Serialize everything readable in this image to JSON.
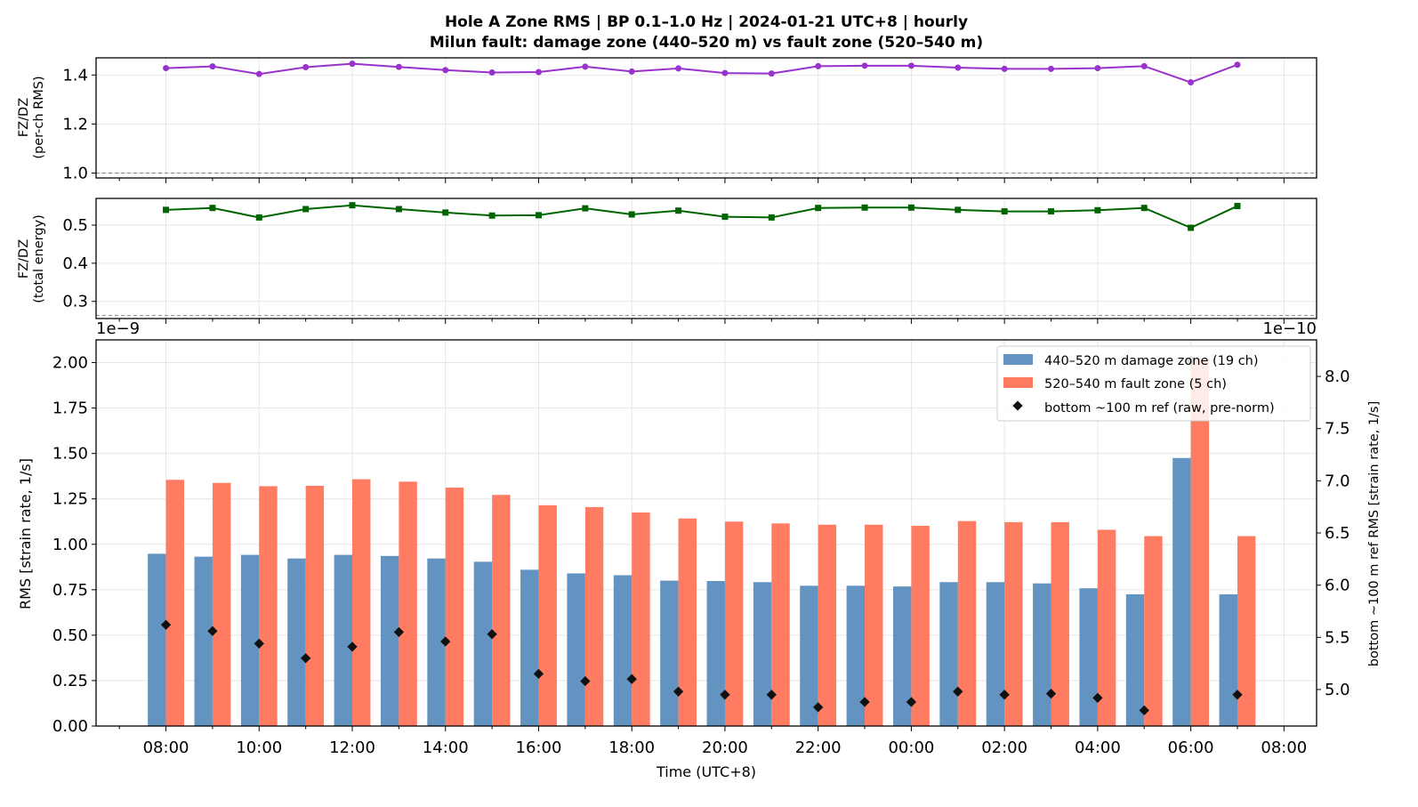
{
  "figure": {
    "title_line1": "Hole A Zone RMS  |  BP 0.1–1.0 Hz  |  2024-01-21 UTC+8  |  hourly",
    "title_line2": "Milun fault: damage zone (440–520 m) vs fault zone (520–540 m)"
  },
  "colors": {
    "ratio_rms": "#9932CC",
    "ratio_energy": "#006400",
    "damage_zone": "#6393C1",
    "fault_zone": "#FF7B61",
    "bottom_ref": "#111111",
    "grid": "#e6e6e6",
    "reference_line": "#888888"
  },
  "chart_data": [
    {
      "type": "line",
      "panel": "top",
      "ylabel_line1": "FZ/DZ",
      "ylabel_line2": "(per-ch RMS)",
      "ylim": [
        0.98,
        1.47
      ],
      "yticks": [
        1.0,
        1.2,
        1.4
      ],
      "reference_y": 1.0,
      "grid": true,
      "marker": "circle",
      "x": [
        "2024-01-21 08:00",
        "2024-01-21 09:00",
        "2024-01-21 10:00",
        "2024-01-21 11:00",
        "2024-01-21 12:00",
        "2024-01-21 13:00",
        "2024-01-21 14:00",
        "2024-01-21 15:00",
        "2024-01-21 16:00",
        "2024-01-21 17:00",
        "2024-01-21 18:00",
        "2024-01-21 19:00",
        "2024-01-21 20:00",
        "2024-01-21 21:00",
        "2024-01-21 22:00",
        "2024-01-21 23:00",
        "2024-01-22 00:00",
        "2024-01-22 01:00",
        "2024-01-22 02:00",
        "2024-01-22 03:00",
        "2024-01-22 04:00",
        "2024-01-22 05:00",
        "2024-01-22 06:00",
        "2024-01-22 07:00"
      ],
      "values": [
        1.428,
        1.435,
        1.404,
        1.432,
        1.446,
        1.433,
        1.42,
        1.41,
        1.412,
        1.434,
        1.414,
        1.427,
        1.408,
        1.406,
        1.436,
        1.438,
        1.438,
        1.43,
        1.425,
        1.425,
        1.428,
        1.436,
        1.37,
        1.442
      ]
    },
    {
      "type": "line",
      "panel": "middle",
      "ylabel_line1": "FZ/DZ",
      "ylabel_line2": "(total energy)",
      "ylim": [
        0.255,
        0.57
      ],
      "yticks": [
        0.3,
        0.4,
        0.5
      ],
      "reference_y": 0.263,
      "grid": true,
      "marker": "square",
      "x": [
        "2024-01-21 08:00",
        "2024-01-21 09:00",
        "2024-01-21 10:00",
        "2024-01-21 11:00",
        "2024-01-21 12:00",
        "2024-01-21 13:00",
        "2024-01-21 14:00",
        "2024-01-21 15:00",
        "2024-01-21 16:00",
        "2024-01-21 17:00",
        "2024-01-21 18:00",
        "2024-01-21 19:00",
        "2024-01-21 20:00",
        "2024-01-21 21:00",
        "2024-01-21 22:00",
        "2024-01-21 23:00",
        "2024-01-22 00:00",
        "2024-01-22 01:00",
        "2024-01-22 02:00",
        "2024-01-22 03:00",
        "2024-01-22 04:00",
        "2024-01-22 05:00",
        "2024-01-22 06:00",
        "2024-01-22 07:00"
      ],
      "values": [
        0.54,
        0.545,
        0.52,
        0.542,
        0.552,
        0.542,
        0.533,
        0.525,
        0.526,
        0.544,
        0.528,
        0.538,
        0.522,
        0.52,
        0.545,
        0.546,
        0.546,
        0.54,
        0.536,
        0.536,
        0.539,
        0.545,
        0.493,
        0.55
      ]
    },
    {
      "type": "bar",
      "panel": "bottom",
      "xlabel": "Time (UTC+8)",
      "ylabel": "RMS  [strain rate, 1/s]",
      "y_scale_label": "1e−9",
      "y2label": "bottom ~100 m ref RMS  [strain rate, 1/s]",
      "y2_scale_label": "1e−10",
      "ylim": [
        0,
        2.125
      ],
      "y2lim": [
        4.65,
        8.35
      ],
      "yticks": [
        0.0,
        0.25,
        0.5,
        0.75,
        1.0,
        1.25,
        1.5,
        1.75,
        2.0
      ],
      "ytick_labels": [
        "0.00",
        "0.25",
        "0.50",
        "0.75",
        "1.00",
        "1.25",
        "1.50",
        "1.75",
        "2.00"
      ],
      "y2ticks": [
        5.0,
        5.5,
        6.0,
        6.5,
        7.0,
        7.5,
        8.0
      ],
      "y2tick_labels": [
        "5.0",
        "5.5",
        "6.0",
        "6.5",
        "7.0",
        "7.5",
        "8.0"
      ],
      "xticks": [
        "08:00",
        "10:00",
        "12:00",
        "14:00",
        "16:00",
        "18:00",
        "20:00",
        "22:00",
        "00:00",
        "02:00",
        "04:00",
        "06:00",
        "08:00"
      ],
      "grid": true,
      "legend_position": "upper right",
      "categories": [
        "08:00",
        "09:00",
        "10:00",
        "11:00",
        "12:00",
        "13:00",
        "14:00",
        "15:00",
        "16:00",
        "17:00",
        "18:00",
        "19:00",
        "20:00",
        "21:00",
        "22:00",
        "23:00",
        "00:00",
        "01:00",
        "02:00",
        "03:00",
        "04:00",
        "05:00",
        "06:00",
        "07:00"
      ],
      "series": [
        {
          "name": "440–520 m  damage zone (19 ch)",
          "kind": "bar",
          "values": [
            0.948,
            0.932,
            0.942,
            0.922,
            0.942,
            0.936,
            0.922,
            0.904,
            0.86,
            0.84,
            0.83,
            0.8,
            0.798,
            0.792,
            0.772,
            0.772,
            0.768,
            0.792,
            0.792,
            0.785,
            0.758,
            0.725,
            1.475,
            0.725
          ]
        },
        {
          "name": "520–540 m  fault zone (5 ch)",
          "kind": "bar",
          "values": [
            1.355,
            1.338,
            1.32,
            1.322,
            1.358,
            1.345,
            1.312,
            1.272,
            1.215,
            1.205,
            1.175,
            1.142,
            1.125,
            1.115,
            1.108,
            1.108,
            1.102,
            1.128,
            1.122,
            1.122,
            1.08,
            1.045,
            2.02,
            1.045
          ]
        },
        {
          "name": "bottom ~100 m ref (raw, pre-norm)",
          "kind": "marker",
          "axis": "right",
          "values": [
            5.62,
            5.56,
            5.44,
            5.3,
            5.41,
            5.55,
            5.46,
            5.53,
            5.15,
            5.08,
            5.1,
            4.98,
            4.95,
            4.95,
            4.83,
            4.88,
            4.88,
            4.98,
            4.95,
            4.96,
            4.92,
            4.8,
            8.15,
            4.95
          ]
        }
      ]
    }
  ]
}
